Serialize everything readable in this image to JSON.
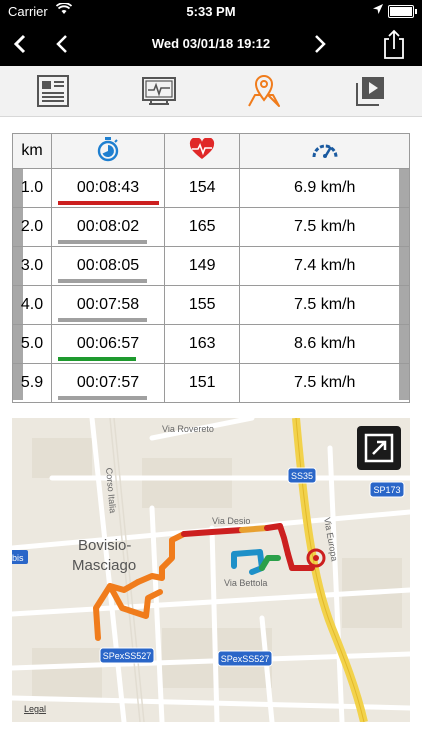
{
  "status_bar": {
    "carrier": "Carrier",
    "time": "5:33 PM"
  },
  "nav": {
    "title": "Wed 03/01/18 19:12"
  },
  "tabs": [
    {
      "icon": "summary-document-icon"
    },
    {
      "icon": "monitor-chart-icon"
    },
    {
      "icon": "map-pin-icon",
      "active": true
    },
    {
      "icon": "video-play-icon"
    }
  ],
  "table": {
    "km_header": "km",
    "rows": [
      {
        "km": "1.0",
        "time": "00:08:43",
        "hr": "154",
        "speed": "6.9 km/h",
        "bar_color": "#cc1f1f",
        "bar_fraction": 0.95
      },
      {
        "km": "2.0",
        "time": "00:08:02",
        "hr": "165",
        "speed": "7.5 km/h",
        "bar_color": "#a0a0a0",
        "bar_fraction": 0.84
      },
      {
        "km": "3.0",
        "time": "00:08:05",
        "hr": "149",
        "speed": "7.4 km/h",
        "bar_color": "#a0a0a0",
        "bar_fraction": 0.84
      },
      {
        "km": "4.0",
        "time": "00:07:58",
        "hr": "155",
        "speed": "7.5 km/h",
        "bar_color": "#a0a0a0",
        "bar_fraction": 0.84
      },
      {
        "km": "5.0",
        "time": "00:06:57",
        "hr": "163",
        "speed": "8.6 km/h",
        "bar_color": "#1e9a2e",
        "bar_fraction": 0.74
      },
      {
        "km": "5.9",
        "time": "00:07:57",
        "hr": "151",
        "speed": "7.5 km/h",
        "bar_color": "#a0a0a0",
        "bar_fraction": 0.84
      }
    ]
  },
  "map": {
    "labels": {
      "via_rovereto": "Via Rovereto",
      "corso_italia": "Corso Italia",
      "via_desio": "Via Desio",
      "via_europa": "Via Europa",
      "via_bettola": "Via Bettola",
      "bovisio": "Bovisio-",
      "masciago": "Masciago",
      "bis": "bis",
      "legal": "Legal"
    },
    "shields": {
      "ss35": "SS35",
      "sp173": "SP173",
      "spex1": "SPexSS527",
      "spex2": "SPexSS527"
    }
  }
}
